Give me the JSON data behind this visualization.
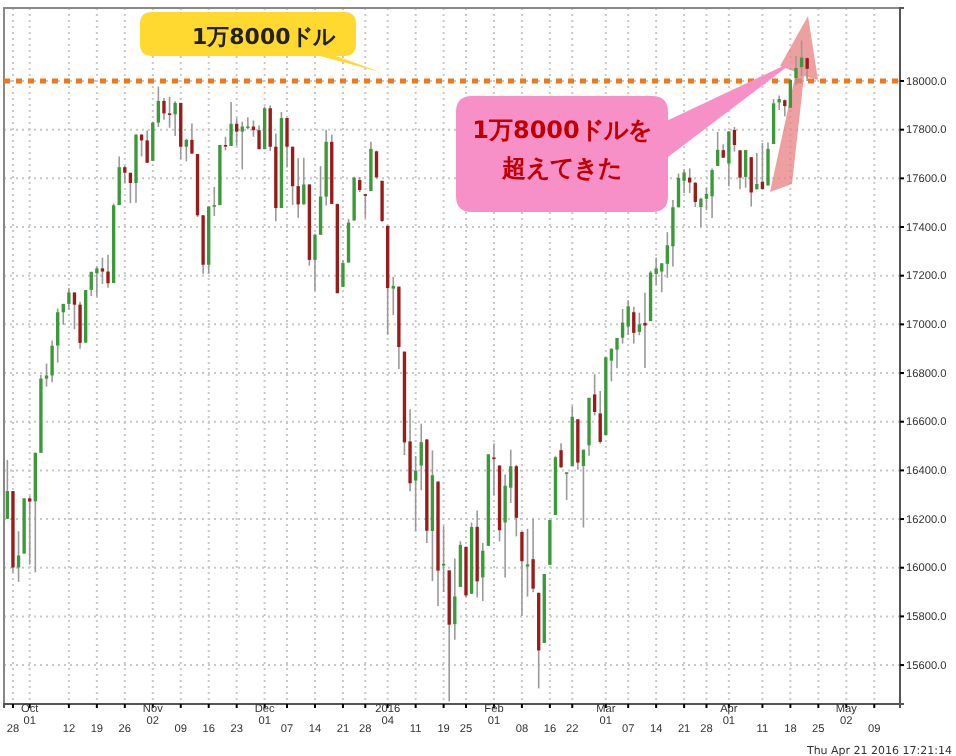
{
  "chart_data": {
    "type": "candlestick",
    "categories": [
      null,
      "28",
      null,
      null,
      "Oct 01",
      null,
      null,
      null,
      null,
      null,
      null,
      "12",
      null,
      null,
      null,
      null,
      "19",
      null,
      null,
      null,
      null,
      "26",
      null,
      null,
      null,
      null,
      "Nov 02",
      null,
      null,
      null,
      null,
      "09",
      null,
      null,
      null,
      null,
      "16",
      null,
      null,
      null,
      null,
      "23",
      null,
      null,
      null,
      null,
      "Dec 01",
      null,
      null,
      null,
      "07",
      null,
      null,
      null,
      null,
      "14",
      null,
      null,
      null,
      null,
      "21",
      null,
      null,
      null,
      "28",
      null,
      null,
      null,
      "2016 04",
      null,
      null,
      null,
      null,
      "11",
      null,
      null,
      null,
      null,
      "19",
      null,
      null,
      null,
      "25",
      null,
      null,
      null,
      null,
      "Feb 01",
      null,
      null,
      null,
      null,
      "08",
      null,
      null,
      null,
      null,
      "16",
      null,
      null,
      null,
      "22",
      null,
      null,
      null,
      null,
      null,
      "Mar 01",
      null,
      null,
      null,
      "07",
      null,
      null,
      null,
      null,
      "14",
      null,
      null,
      null,
      null,
      "21",
      null,
      null,
      null,
      "28",
      null,
      null,
      null,
      "Apr 01",
      null,
      null,
      null,
      null,
      null,
      "11",
      null,
      null,
      null,
      null,
      "18",
      null,
      null,
      null,
      null,
      "25",
      null,
      null,
      null,
      null,
      "May 02",
      null,
      null,
      null,
      null,
      "09",
      null,
      null,
      null,
      null
    ],
    "ohlc": [
      [
        16201,
        16443,
        16201,
        16315
      ],
      [
        16315,
        16315,
        15980,
        16001
      ],
      [
        16001,
        16150,
        15942,
        16050
      ],
      [
        16058,
        16285,
        16058,
        16285
      ],
      [
        16285,
        16294,
        16013,
        16272
      ],
      [
        16273,
        16473,
        15981,
        16472
      ],
      [
        16472,
        16793,
        16472,
        16777
      ],
      [
        16777,
        16839,
        16744,
        16790
      ],
      [
        16790,
        16934,
        16762,
        16912
      ],
      [
        16913,
        17065,
        16843,
        17050
      ],
      [
        17050,
        17084,
        16998,
        17084
      ],
      [
        17084,
        17149,
        17061,
        17131
      ],
      [
        17131,
        17131,
        16980,
        17081
      ],
      [
        17081,
        17093,
        16900,
        16924
      ],
      [
        16925,
        17141,
        16925,
        17141
      ],
      [
        17142,
        17216,
        17116,
        17216
      ],
      [
        17210,
        17238,
        17115,
        17230
      ],
      [
        17230,
        17274,
        17166,
        17217
      ],
      [
        17217,
        17286,
        17150,
        17169
      ],
      [
        17170,
        17496,
        17170,
        17489
      ],
      [
        17490,
        17690,
        17490,
        17646
      ],
      [
        17646,
        17652,
        17581,
        17623
      ],
      [
        17623,
        17623,
        17498,
        17581
      ],
      [
        17581,
        17780,
        17500,
        17780
      ],
      [
        17780,
        17780,
        17690,
        17756
      ],
      [
        17756,
        17797,
        17664,
        17664
      ],
      [
        17672,
        17833,
        17672,
        17829
      ],
      [
        17829,
        17977,
        17811,
        17918
      ],
      [
        17918,
        17930,
        17841,
        17867
      ],
      [
        17867,
        17935,
        17808,
        17863
      ],
      [
        17863,
        17917,
        17774,
        17910
      ],
      [
        17910,
        17910,
        17680,
        17730
      ],
      [
        17730,
        17763,
        17670,
        17758
      ],
      [
        17758,
        17825,
        17700,
        17702
      ],
      [
        17700,
        17700,
        17441,
        17448
      ],
      [
        17448,
        17449,
        17208,
        17245
      ],
      [
        17245,
        17484,
        17209,
        17484
      ],
      [
        17486,
        17565,
        17445,
        17490
      ],
      [
        17490,
        17737,
        17490,
        17737
      ],
      [
        17737,
        17771,
        17715,
        17733
      ],
      [
        17733,
        17914,
        17733,
        17824
      ],
      [
        17824,
        17847,
        17734,
        17792
      ],
      [
        17792,
        17833,
        17637,
        17813
      ],
      [
        17813,
        17851,
        17801,
        17813
      ],
      [
        17813,
        17838,
        17771,
        17798
      ],
      [
        17798,
        17817,
        17720,
        17720
      ],
      [
        17720,
        17895,
        17720,
        17888
      ],
      [
        17888,
        17900,
        17712,
        17730
      ],
      [
        17730,
        17784,
        17424,
        17478
      ],
      [
        17478,
        17873,
        17478,
        17848
      ],
      [
        17848,
        17848,
        17645,
        17730
      ],
      [
        17730,
        17730,
        17491,
        17568
      ],
      [
        17568,
        17683,
        17438,
        17493
      ],
      [
        17493,
        17685,
        17493,
        17575
      ],
      [
        17575,
        17575,
        17241,
        17265
      ],
      [
        17265,
        17372,
        17138,
        17368
      ],
      [
        17368,
        17650,
        17368,
        17525
      ],
      [
        17525,
        17800,
        17488,
        17750
      ],
      [
        17750,
        17779,
        17495,
        17495
      ],
      [
        17495,
        17495,
        17128,
        17128
      ],
      [
        17154,
        17263,
        17154,
        17252
      ],
      [
        17254,
        17433,
        17254,
        17418
      ],
      [
        17427,
        17607,
        17427,
        17603
      ],
      [
        17593,
        17606,
        17544,
        17552
      ],
      [
        17535,
        17536,
        17437,
        17528
      ],
      [
        17548,
        17750,
        17548,
        17721
      ],
      [
        17711,
        17714,
        17599,
        17604
      ],
      [
        17590,
        17590,
        17421,
        17425
      ],
      [
        17405,
        17405,
        16957,
        17149
      ],
      [
        17147,
        17195,
        17038,
        17158
      ],
      [
        17155,
        17155,
        16817,
        16907
      ],
      [
        16888,
        16888,
        16463,
        16515
      ],
      [
        16519,
        16651,
        16314,
        16347
      ],
      [
        16358,
        16459,
        16151,
        16399
      ],
      [
        16420,
        16592,
        16318,
        16516
      ],
      [
        16527,
        16528,
        16102,
        16152
      ],
      [
        16151,
        16482,
        15945,
        16380
      ],
      [
        16354,
        16354,
        15843,
        15988
      ],
      [
        16009,
        16171,
        15900,
        16016
      ],
      [
        15989,
        15989,
        15451,
        15766
      ],
      [
        15768,
        16038,
        15704,
        15882
      ],
      [
        15921,
        16109,
        15921,
        16094
      ],
      [
        16086,
        16086,
        15880,
        15886
      ],
      [
        15893,
        16185,
        15893,
        16167
      ],
      [
        16168,
        16235,
        15878,
        15944
      ],
      [
        15960,
        16102,
        15863,
        16070
      ],
      [
        16090,
        16466,
        16090,
        16466
      ],
      [
        16453,
        16510,
        16299,
        16449
      ],
      [
        16420,
        16420,
        16108,
        16154
      ],
      [
        16186,
        16383,
        15960,
        16337
      ],
      [
        16329,
        16485,
        16266,
        16417
      ],
      [
        16417,
        16423,
        16129,
        16205
      ],
      [
        16147,
        16147,
        15803,
        16027
      ],
      [
        16005,
        16160,
        15881,
        16014
      ],
      [
        16035,
        16201,
        15899,
        15914
      ],
      [
        15897,
        15897,
        15504,
        15660
      ],
      [
        15691,
        15974,
        15691,
        15974
      ],
      [
        16012,
        16196,
        16012,
        16196
      ],
      [
        16217,
        16458,
        16217,
        16454
      ],
      [
        16483,
        16511,
        16410,
        16413
      ],
      [
        16392,
        16392,
        16278,
        16392
      ],
      [
        16417,
        16664,
        16417,
        16620
      ],
      [
        16610,
        16610,
        16403,
        16432
      ],
      [
        16418,
        16485,
        16165,
        16485
      ],
      [
        16503,
        16698,
        16460,
        16698
      ],
      [
        16712,
        16795,
        16626,
        16640
      ],
      [
        16634,
        16726,
        16510,
        16517
      ],
      [
        16545,
        16865,
        16545,
        16865
      ],
      [
        16851,
        16900,
        16766,
        16900
      ],
      [
        16896,
        16944,
        16820,
        16944
      ],
      [
        16945,
        17063,
        16921,
        17007
      ],
      [
        16991,
        17099,
        16956,
        17074
      ],
      [
        17050,
        17072,
        16921,
        16965
      ],
      [
        16969,
        17048,
        16955,
        17000
      ],
      [
        17006,
        17130,
        16821,
        16995
      ],
      [
        17014,
        17220,
        17014,
        17213
      ],
      [
        17207,
        17275,
        17163,
        17230
      ],
      [
        17217,
        17251,
        17132,
        17251
      ],
      [
        17249,
        17379,
        17191,
        17325
      ],
      [
        17321,
        17511,
        17238,
        17481
      ],
      [
        17481,
        17620,
        17481,
        17602
      ],
      [
        17590,
        17637,
        17539,
        17624
      ],
      [
        17603,
        17641,
        17540,
        17583
      ],
      [
        17582,
        17584,
        17482,
        17503
      ],
      [
        17482,
        17520,
        17400,
        17516
      ],
      [
        17516,
        17563,
        17469,
        17536
      ],
      [
        17526,
        17640,
        17437,
        17634
      ],
      [
        17651,
        17791,
        17651,
        17717
      ],
      [
        17716,
        17740,
        17684,
        17685
      ],
      [
        17661,
        17793,
        17568,
        17793
      ],
      [
        17799,
        17811,
        17710,
        17737
      ],
      [
        17715,
        17715,
        17555,
        17603
      ],
      [
        17606,
        17717,
        17562,
        17716
      ],
      [
        17687,
        17687,
        17484,
        17542
      ],
      [
        17555,
        17704,
        17555,
        17577
      ],
      [
        17586,
        17745,
        17555,
        17556
      ],
      [
        17571,
        17747,
        17571,
        17721
      ],
      [
        17741,
        17926,
        17741,
        17908
      ],
      [
        17912,
        17940,
        17881,
        17926
      ],
      [
        17921,
        17924,
        17855,
        17897
      ],
      [
        17890,
        18009,
        17890,
        18004
      ],
      [
        18012,
        18103,
        17984,
        18053
      ],
      [
        18057,
        18167,
        18021,
        18096
      ],
      [
        18094,
        18097,
        18000,
        18050
      ],
      null,
      null,
      null,
      null,
      null,
      null,
      null,
      null,
      null,
      null,
      null,
      null,
      null,
      null,
      null,
      null
    ],
    "ylim": [
      15440,
      18300
    ],
    "yticks": [
      {
        "value": 15600,
        "label": "15600.0"
      },
      {
        "value": 15800,
        "label": "15800.0"
      },
      {
        "value": 16000,
        "label": "16000.0"
      },
      {
        "value": 16200,
        "label": "16200.0"
      },
      {
        "value": 16400,
        "label": "16400.0"
      },
      {
        "value": 16600,
        "label": "16600.0"
      },
      {
        "value": 16800,
        "label": "16800.0"
      },
      {
        "value": 17000,
        "label": "17000.0"
      },
      {
        "value": 17200,
        "label": "17200.0"
      },
      {
        "value": 17400,
        "label": "17400.0"
      },
      {
        "value": 17600,
        "label": "17600.0"
      },
      {
        "value": 17800,
        "label": "17800.0"
      },
      {
        "value": 18000,
        "label": "18000.0"
      }
    ],
    "grid": true,
    "ref_lines": [
      {
        "axis": "y",
        "value": 18000,
        "label": "1万8000ドル",
        "color": "#f07818",
        "line_style": "dotted"
      }
    ],
    "annotations": [
      "1万8000ドルを超えてきた",
      "Thu Apr 21 2016 17:21:14"
    ]
  }
}
